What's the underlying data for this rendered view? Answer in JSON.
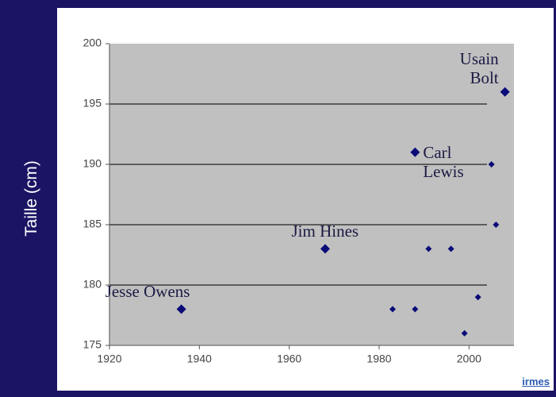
{
  "chart_data": {
    "type": "scatter",
    "y_label": "Taille (cm)",
    "x": [
      1936,
      1968,
      1988,
      2008,
      1983,
      1988,
      1991,
      1996,
      1999,
      2002,
      2005,
      2006
    ],
    "values": [
      178,
      183,
      191,
      196,
      178,
      178,
      183,
      183,
      176,
      179,
      190,
      185
    ],
    "point_labels": [
      "Jesse Owens",
      "Jim Hines",
      "Carl Lewis",
      "Usain Bolt",
      null,
      null,
      null,
      null,
      null,
      null,
      null,
      null
    ],
    "color": "#0a0a78",
    "xlim": [
      1920,
      2010
    ],
    "xticks": [
      1920,
      1940,
      1960,
      1980,
      2000
    ],
    "ylim": [
      175,
      200
    ],
    "yticks": [
      175,
      180,
      185,
      190,
      195,
      200
    ],
    "grid": true
  },
  "logo": "irmes"
}
